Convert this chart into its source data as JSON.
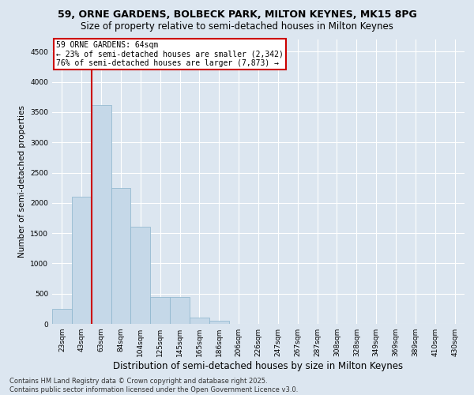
{
  "title": "59, ORNE GARDENS, BOLBECK PARK, MILTON KEYNES, MK15 8PG",
  "subtitle": "Size of property relative to semi-detached houses in Milton Keynes",
  "xlabel": "Distribution of semi-detached houses by size in Milton Keynes",
  "ylabel": "Number of semi-detached properties",
  "categories": [
    "23sqm",
    "43sqm",
    "63sqm",
    "84sqm",
    "104sqm",
    "125sqm",
    "145sqm",
    "165sqm",
    "186sqm",
    "206sqm",
    "226sqm",
    "247sqm",
    "267sqm",
    "287sqm",
    "308sqm",
    "328sqm",
    "349sqm",
    "369sqm",
    "389sqm",
    "410sqm",
    "430sqm"
  ],
  "values": [
    250,
    2100,
    3620,
    2250,
    1600,
    450,
    450,
    100,
    50,
    0,
    0,
    0,
    0,
    0,
    0,
    0,
    0,
    0,
    0,
    0,
    0
  ],
  "bar_color": "#c5d8e8",
  "bar_edge_color": "#8ab4cc",
  "background_color": "#dce6f0",
  "grid_color": "#ffffff",
  "annotation_box_text": "59 ORNE GARDENS: 64sqm\n← 23% of semi-detached houses are smaller (2,342)\n76% of semi-detached houses are larger (7,873) →",
  "annotation_box_color": "#ffffff",
  "annotation_box_border": "#cc0000",
  "vline_color": "#cc0000",
  "vline_x_index": 1.5,
  "ylim": [
    0,
    4700
  ],
  "yticks": [
    0,
    500,
    1000,
    1500,
    2000,
    2500,
    3000,
    3500,
    4000,
    4500
  ],
  "footnote": "Contains HM Land Registry data © Crown copyright and database right 2025.\nContains public sector information licensed under the Open Government Licence v3.0.",
  "title_fontsize": 9,
  "subtitle_fontsize": 8.5,
  "xlabel_fontsize": 8.5,
  "ylabel_fontsize": 7.5,
  "tick_fontsize": 6.5,
  "annotation_fontsize": 7,
  "footnote_fontsize": 6
}
